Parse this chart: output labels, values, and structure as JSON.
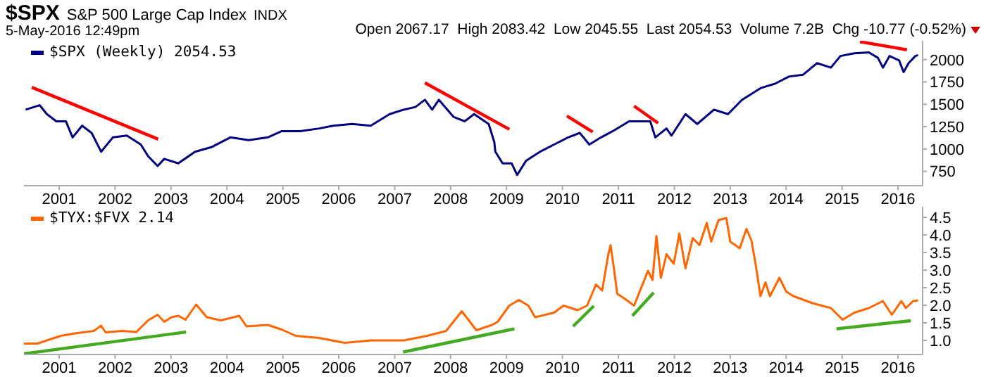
{
  "chart_data": [
    {
      "type": "line",
      "title": "$SPX",
      "subtitle": "S&P 500 Large Cap Index",
      "annotations": [
        "INDX",
        "5-May-2016 12:49pm",
        "Open 2067.17  High 2083.42  Low 2045.55  Last 2054.53  Volume 7.2B  Chg -10.77 (-0.52%)"
      ],
      "xlim": [
        2000.37,
        2016.44
      ],
      "xticks": [
        2001,
        2002,
        2003,
        2004,
        2005,
        2006,
        2007,
        2008,
        2009,
        2010,
        2011,
        2012,
        2013,
        2014,
        2015,
        2016
      ],
      "ylim": [
        590,
        2210
      ],
      "yticks": [
        750,
        1000,
        1250,
        1500,
        1750,
        2000
      ],
      "legend": "top left",
      "series": [
        {
          "name": "$SPX (Weekly) 2054.53",
          "color": "#000080",
          "x": [
            2000.4,
            2000.65,
            2000.78,
            2000.95,
            2001.12,
            2001.24,
            2001.41,
            2001.58,
            2001.75,
            2001.96,
            2002.21,
            2002.46,
            2002.59,
            2002.76,
            2002.88,
            2003.13,
            2003.43,
            2003.72,
            2004.06,
            2004.39,
            2004.73,
            2004.98,
            2005.31,
            2005.65,
            2005.9,
            2006.24,
            2006.57,
            2006.91,
            2007.16,
            2007.37,
            2007.54,
            2007.67,
            2007.79,
            2008.05,
            2008.25,
            2008.42,
            2008.68,
            2008.72,
            2008.78,
            2008.8,
            2008.93,
            2009.09,
            2009.19,
            2009.35,
            2009.6,
            2009.85,
            2010.1,
            2010.31,
            2010.48,
            2010.69,
            2010.9,
            2011.19,
            2011.45,
            2011.57,
            2011.66,
            2011.86,
            2011.95,
            2012.2,
            2012.41,
            2012.71,
            2012.96,
            2013.21,
            2013.54,
            2013.8,
            2014.05,
            2014.3,
            2014.55,
            2014.8,
            2014.97,
            2015.22,
            2015.48,
            2015.64,
            2015.73,
            2015.85,
            2016.02,
            2016.1,
            2016.19,
            2016.31,
            2016.36
          ],
          "values": [
            1440,
            1490,
            1390,
            1310,
            1310,
            1130,
            1260,
            1180,
            970,
            1130,
            1150,
            1050,
            920,
            810,
            890,
            840,
            970,
            1020,
            1130,
            1100,
            1130,
            1200,
            1200,
            1230,
            1260,
            1280,
            1260,
            1390,
            1440,
            1470,
            1550,
            1440,
            1550,
            1360,
            1310,
            1390,
            1280,
            1200,
            1080,
            970,
            840,
            840,
            710,
            870,
            970,
            1050,
            1130,
            1180,
            1050,
            1130,
            1200,
            1310,
            1310,
            1310,
            1130,
            1230,
            1150,
            1390,
            1280,
            1440,
            1390,
            1550,
            1680,
            1730,
            1810,
            1830,
            1960,
            1910,
            2040,
            2070,
            2080,
            2020,
            1910,
            2040,
            1990,
            1860,
            1960,
            2040,
            2050
          ]
        },
        {
          "type": "line",
          "color": "#ff0000",
          "x": [
            2000.51,
            2002.77
          ],
          "values": [
            1690,
            1110
          ]
        },
        {
          "type": "line",
          "color": "#ff0000",
          "x": [
            2007.54,
            2009.05
          ],
          "values": [
            1740,
            1220
          ]
        },
        {
          "type": "line",
          "color": "#ff0000",
          "x": [
            2010.08,
            2010.54
          ],
          "values": [
            1370,
            1190
          ]
        },
        {
          "type": "line",
          "color": "#ff0000",
          "x": [
            2011.28,
            2011.71
          ],
          "values": [
            1480,
            1290
          ]
        },
        {
          "type": "line",
          "color": "#ff0000",
          "x": [
            2015.32,
            2016.16
          ],
          "values": [
            2200,
            2110
          ]
        }
      ]
    },
    {
      "type": "line",
      "xlim": [
        2000.37,
        2016.44
      ],
      "xticks": [
        2001,
        2002,
        2003,
        2004,
        2005,
        2006,
        2007,
        2008,
        2009,
        2010,
        2011,
        2012,
        2013,
        2014,
        2015,
        2016
      ],
      "ylim": [
        0.6,
        4.8
      ],
      "yticks": [
        {
          "value": 1,
          "label": "1.0"
        },
        1.5,
        {
          "value": 2,
          "label": "2.0"
        },
        2.5,
        {
          "value": 3,
          "label": "3.0"
        },
        3.5,
        {
          "value": 4,
          "label": "4.0"
        },
        4.5
      ],
      "legend": "top left",
      "series": [
        {
          "name": "$TYX:$FVX 2.14",
          "color": "#ff6600",
          "x": [
            2000.37,
            2000.61,
            2000.78,
            2001.03,
            2001.28,
            2001.62,
            2001.75,
            2001.83,
            2002.13,
            2002.38,
            2002.59,
            2002.76,
            2002.88,
            2003.01,
            2003.13,
            2003.26,
            2003.45,
            2003.64,
            2003.89,
            2004.22,
            2004.35,
            2004.73,
            2004.98,
            2005.23,
            2005.65,
            2006.11,
            2006.57,
            2007.16,
            2007.58,
            2007.92,
            2008.2,
            2008.46,
            2008.74,
            2008.84,
            2009.05,
            2009.22,
            2009.39,
            2009.51,
            2009.85,
            2010.02,
            2010.27,
            2010.44,
            2010.6,
            2010.71,
            2010.82,
            2010.86,
            2010.92,
            2010.98,
            2011.11,
            2011.28,
            2011.53,
            2011.61,
            2011.68,
            2011.76,
            2011.86,
            2011.99,
            2012.09,
            2012.2,
            2012.33,
            2012.45,
            2012.58,
            2012.66,
            2012.79,
            2012.93,
            2013.0,
            2013.17,
            2013.29,
            2013.38,
            2013.46,
            2013.54,
            2013.63,
            2013.71,
            2013.88,
            2014.0,
            2014.13,
            2014.47,
            2014.8,
            2015.01,
            2015.22,
            2015.48,
            2015.73,
            2015.89,
            2016.06,
            2016.14,
            2016.27,
            2016.36
          ],
          "values": [
            0.91,
            0.91,
            1.0,
            1.13,
            1.2,
            1.27,
            1.42,
            1.23,
            1.27,
            1.24,
            1.57,
            1.73,
            1.53,
            1.66,
            1.7,
            1.59,
            2.02,
            1.66,
            1.57,
            1.7,
            1.4,
            1.44,
            1.31,
            1.13,
            1.07,
            0.93,
            1.0,
            1.0,
            1.13,
            1.27,
            1.83,
            1.29,
            1.44,
            1.53,
            1.99,
            2.15,
            1.99,
            1.66,
            1.79,
            1.99,
            1.86,
            1.99,
            2.59,
            2.42,
            3.45,
            3.71,
            3.05,
            2.32,
            2.19,
            1.99,
            2.98,
            2.72,
            3.97,
            2.78,
            3.45,
            3.18,
            4.04,
            3.05,
            3.91,
            3.71,
            4.34,
            3.81,
            4.42,
            4.48,
            3.81,
            3.62,
            4.17,
            3.84,
            3.11,
            2.26,
            2.65,
            2.26,
            2.78,
            2.39,
            2.26,
            2.06,
            1.92,
            1.59,
            1.79,
            1.92,
            2.12,
            1.73,
            2.12,
            1.92,
            2.12,
            2.14
          ]
        },
        {
          "type": "line",
          "color": "#44aa22",
          "x": [
            2000.37,
            2003.27
          ],
          "values": [
            0.62,
            1.24
          ]
        },
        {
          "type": "line",
          "color": "#44aa22",
          "x": [
            2007.15,
            2009.14
          ],
          "values": [
            0.67,
            1.33
          ]
        },
        {
          "type": "line",
          "color": "#44aa22",
          "x": [
            2010.19,
            2010.56
          ],
          "values": [
            1.4,
            1.98
          ]
        },
        {
          "type": "line",
          "color": "#44aa22",
          "x": [
            2011.25,
            2011.63
          ],
          "values": [
            1.7,
            2.36
          ]
        },
        {
          "type": "line",
          "color": "#44aa22",
          "x": [
            2014.9,
            2016.23
          ],
          "values": [
            1.33,
            1.56
          ]
        }
      ]
    }
  ]
}
